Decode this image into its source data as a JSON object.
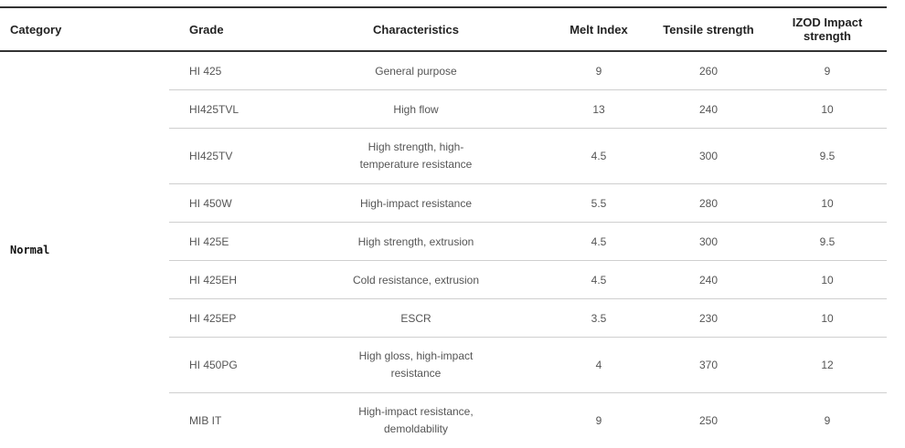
{
  "table": {
    "headers": {
      "category": "Category",
      "grade": "Grade",
      "characteristics": "Characteristics",
      "melt_index": "Melt Index",
      "tensile_strength": "Tensile strength",
      "izod": "IZOD Impact strength"
    },
    "category_value": "Normal",
    "rows": [
      {
        "grade": "HI 425",
        "characteristics": "General purpose",
        "melt_index": "9",
        "tensile_strength": "260",
        "izod": "9"
      },
      {
        "grade": "HI425TVL",
        "characteristics": "High flow",
        "melt_index": "13",
        "tensile_strength": "240",
        "izod": "10"
      },
      {
        "grade": "HI425TV",
        "characteristics": "High strength, high-temperature resistance",
        "melt_index": "4.5",
        "tensile_strength": "300",
        "izod": "9.5"
      },
      {
        "grade": "HI 450W",
        "characteristics": "High-impact resistance",
        "melt_index": "5.5",
        "tensile_strength": "280",
        "izod": "10"
      },
      {
        "grade": "HI 425E",
        "characteristics": "High strength, extrusion",
        "melt_index": "4.5",
        "tensile_strength": "300",
        "izod": "9.5"
      },
      {
        "grade": "HI 425EH",
        "characteristics": "Cold resistance, extrusion",
        "melt_index": "4.5",
        "tensile_strength": "240",
        "izod": "10"
      },
      {
        "grade": "HI 425EP",
        "characteristics": "ESCR",
        "melt_index": "3.5",
        "tensile_strength": "230",
        "izod": "10"
      },
      {
        "grade": "HI 450PG",
        "characteristics": "High gloss, high-impact resistance",
        "melt_index": "4",
        "tensile_strength": "370",
        "izod": "12"
      },
      {
        "grade": "MIB IT",
        "characteristics": "High-impact resistance, demoldability",
        "melt_index": "9",
        "tensile_strength": "250",
        "izod": "9"
      }
    ]
  }
}
